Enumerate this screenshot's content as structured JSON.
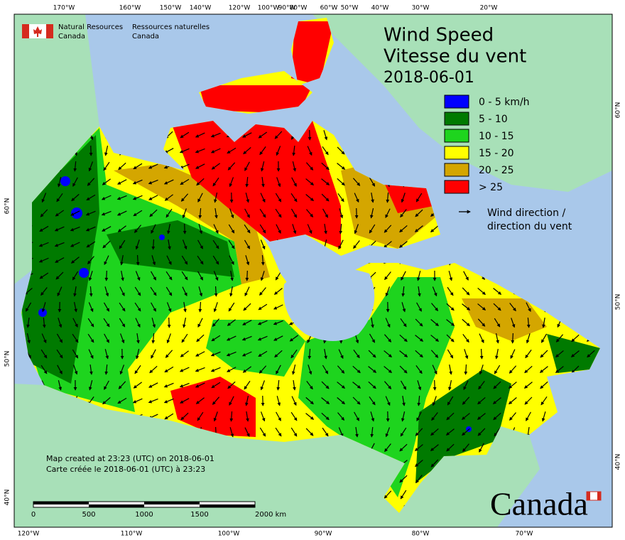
{
  "agency": {
    "en_line1": "Natural Resources",
    "en_line2": "Canada",
    "fr_line1": "Ressources naturelles",
    "fr_line2": "Canada"
  },
  "title": {
    "en": "Wind Speed",
    "fr": "Vitesse du vent",
    "date": "2018-06-01"
  },
  "legend": {
    "items": [
      {
        "label": "0 - 5 km/h",
        "color": "#0000ff"
      },
      {
        "label": "5 - 10",
        "color": "#007a00"
      },
      {
        "label": "10 - 15",
        "color": "#1ed41e"
      },
      {
        "label": "15 - 20",
        "color": "#ffff00"
      },
      {
        "label": "20 - 25",
        "color": "#d4a600"
      },
      {
        "label": "> 25",
        "color": "#ff0000"
      }
    ],
    "direction": {
      "line1": "Wind direction /",
      "line2": "direction du vent"
    }
  },
  "credits": {
    "en": "Map created at 23:23 (UTC) on 2018-06-01",
    "fr": "Carte créée le 2018-06-01 (UTC) à 23:23"
  },
  "scale_bar": {
    "labels": [
      "0",
      "500",
      "1000",
      "1500",
      "2000 km"
    ]
  },
  "graticule": {
    "top": [
      "170°W",
      "160°W",
      "150°W",
      "140°W",
      "120°W",
      "100°W",
      "90°W",
      "80°W",
      "60°W",
      "50°W",
      "40°W",
      "30°W",
      "20°W"
    ],
    "bottom": [
      "120°W",
      "110°W",
      "100°W",
      "90°W",
      "80°W",
      "70°W"
    ],
    "left": [
      "60°N",
      "50°N",
      "40°N"
    ],
    "right": [
      "60°N",
      "50°N",
      "40°N"
    ]
  },
  "wordmark": "Canada"
}
